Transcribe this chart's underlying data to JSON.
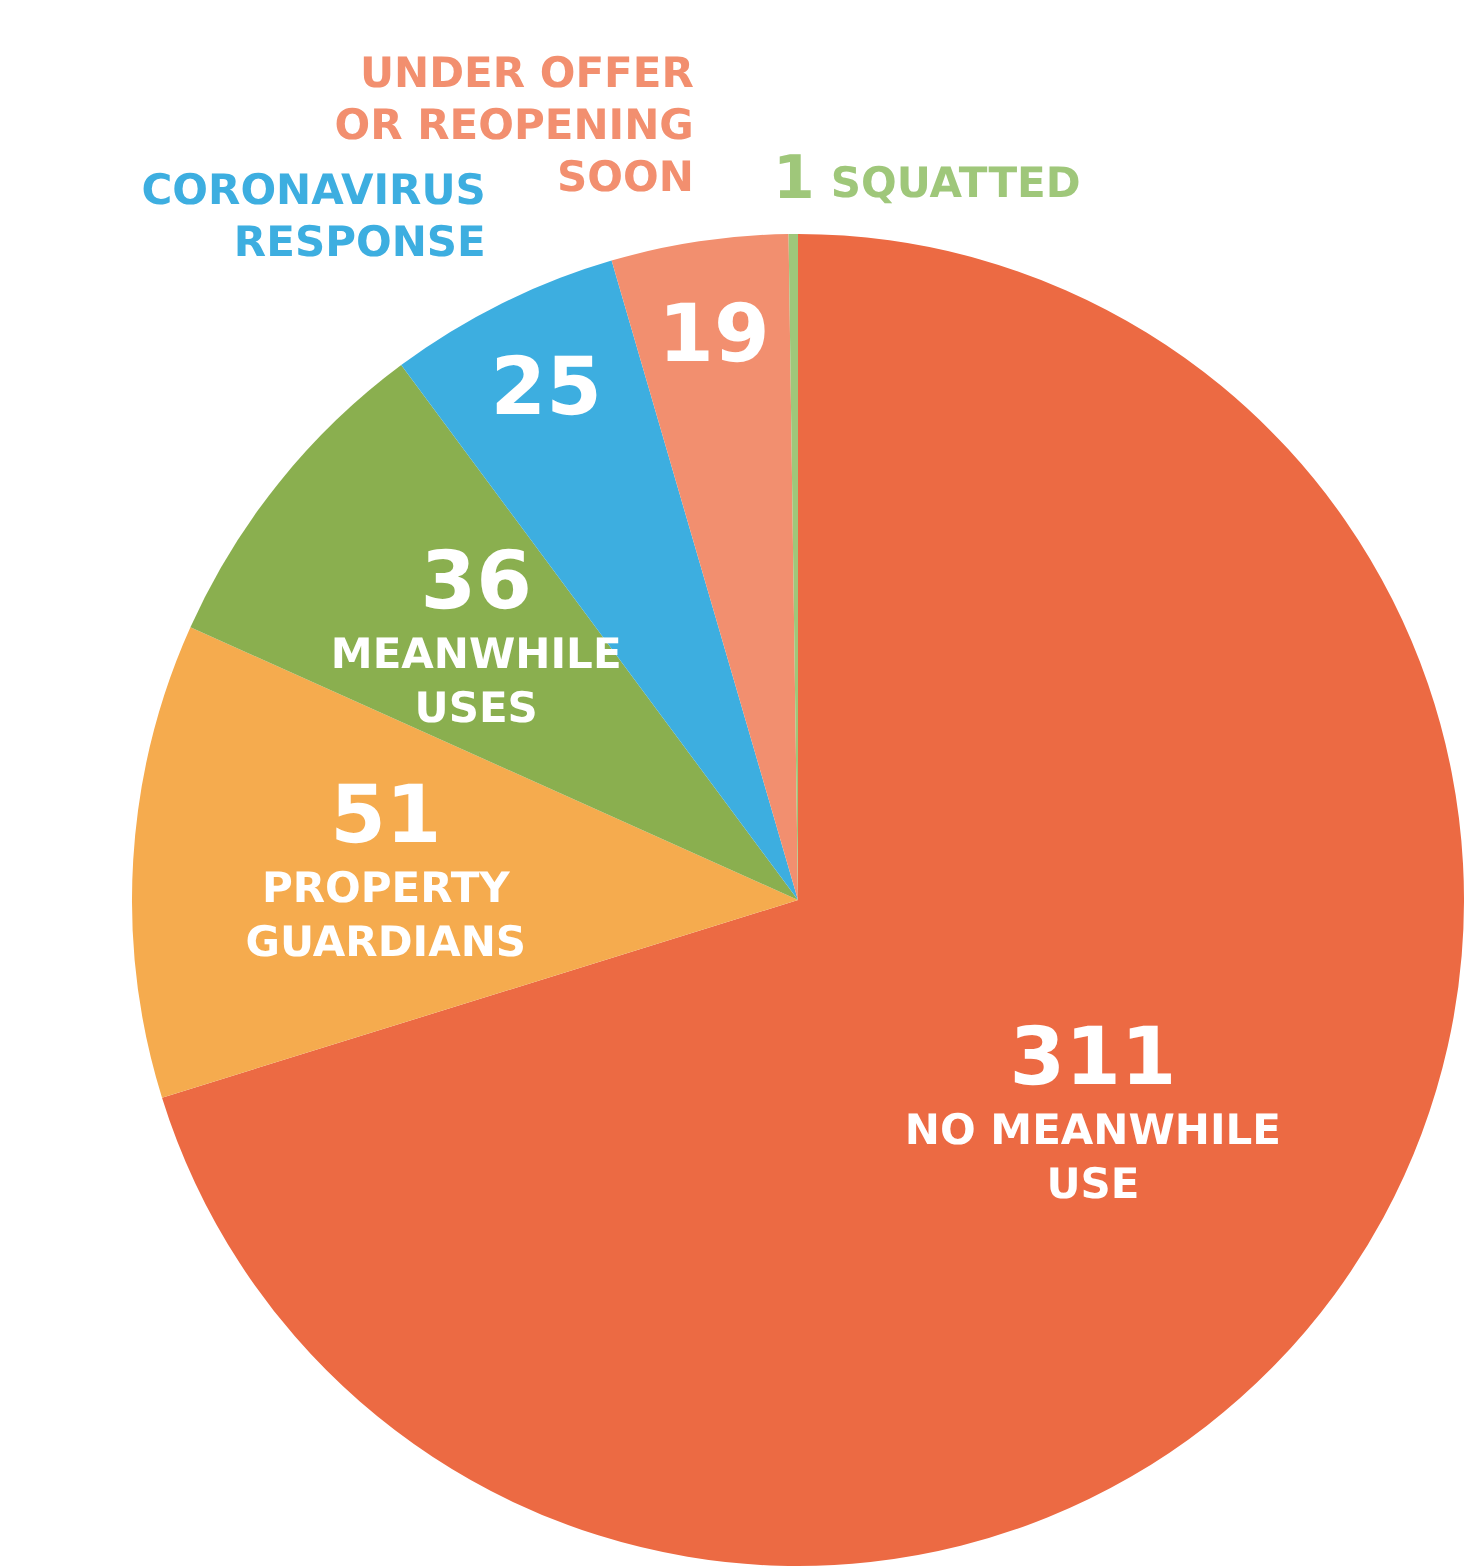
{
  "chart_data": {
    "type": "pie",
    "categories": [
      "NO MEANWHILE USE",
      "PROPERTY GUARDIANS",
      "MEANWHILE USES",
      "CORONAVIRUS RESPONSE",
      "UNDER OFFER OR REOPENING SOON",
      "SQUATTED"
    ],
    "values": [
      311,
      51,
      36,
      25,
      19,
      1
    ],
    "colors": [
      "#ec6a43",
      "#f5ab4e",
      "#8aaf4f",
      "#3daee0",
      "#f28f6f",
      "#9fc77a"
    ],
    "data_labels": true,
    "legend": false
  }
}
